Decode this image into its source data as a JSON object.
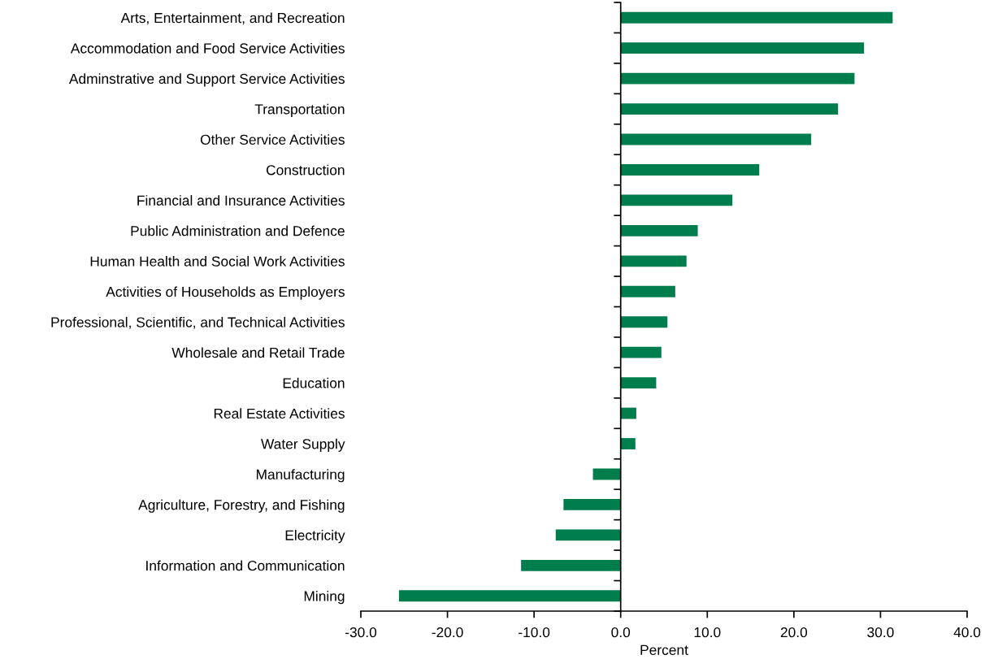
{
  "chart_data": {
    "type": "bar",
    "orientation": "horizontal",
    "categories": [
      "Arts, Entertainment, and Recreation",
      "Accommodation and Food Service Activities",
      "Adminstrative and Support Service Activities",
      "Transportation",
      "Other Service Activities",
      "Construction",
      "Financial and Insurance Activities",
      "Public Administration and Defence",
      "Human Health and Social Work Activities",
      "Activities of Households as Employers",
      "Professional, Scientific, and Technical Activities",
      "Wholesale and Retail Trade",
      "Education",
      "Real Estate Activities",
      "Water Supply",
      "Manufacturing",
      "Agriculture, Forestry, and Fishing",
      "Electricity",
      "Information and Communication",
      "Mining"
    ],
    "values": [
      31.4,
      28.1,
      27.0,
      25.1,
      22.0,
      16.0,
      12.9,
      8.9,
      7.6,
      6.3,
      5.4,
      4.7,
      4.1,
      1.8,
      1.7,
      -3.2,
      -6.6,
      -7.5,
      -11.5,
      -25.6
    ],
    "color": "#007d4c",
    "xlabel": "Percent",
    "xlim": [
      -30,
      40
    ],
    "xticks": [
      {
        "value": -30,
        "label": "-30.0"
      },
      {
        "value": -20,
        "label": "-20.0"
      },
      {
        "value": -10,
        "label": "-10.0"
      },
      {
        "value": 0,
        "label": "0.0"
      },
      {
        "value": 10,
        "label": "10.0"
      },
      {
        "value": 20,
        "label": "20.0"
      },
      {
        "value": 30,
        "label": "30.0"
      },
      {
        "value": 40,
        "label": "40.0"
      }
    ]
  }
}
